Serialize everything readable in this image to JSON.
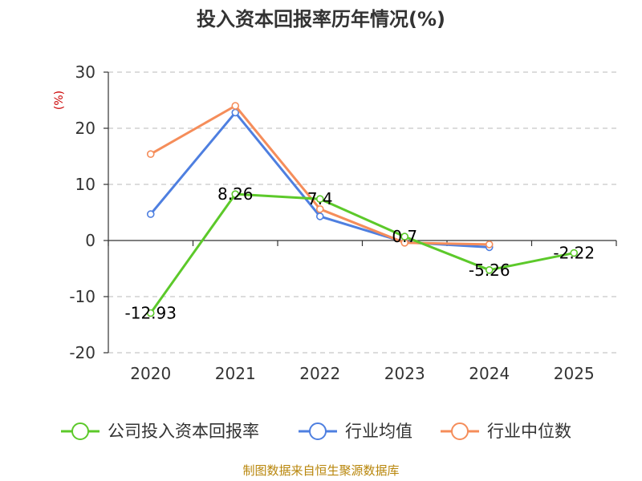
{
  "chart_data": {
    "type": "line",
    "title": "投入资本回报率历年情况(%)",
    "ylabel": "(%)",
    "xlabel": "",
    "categories": [
      "2020",
      "2021",
      "2022",
      "2023",
      "2024",
      "2025"
    ],
    "ylim": [
      -20,
      30
    ],
    "yticks": [
      -20,
      -10,
      0,
      10,
      20,
      30
    ],
    "grid": true,
    "legend_position": "bottom",
    "series": [
      {
        "name": "公司投入资本回报率",
        "color": "#5cc92a",
        "values": [
          -12.93,
          8.26,
          7.4,
          0.7,
          -5.26,
          -2.22
        ],
        "labels": [
          "-12.93",
          "8.26",
          "7.4",
          "0.7",
          "-5.26",
          "-2.22"
        ]
      },
      {
        "name": "行业均值",
        "color": "#4e7fe0",
        "values": [
          4.7,
          22.8,
          4.3,
          -0.3,
          -1.2,
          null
        ]
      },
      {
        "name": "行业中位数",
        "color": "#f58d5a",
        "values": [
          15.4,
          24.0,
          5.6,
          -0.4,
          -0.7,
          null
        ]
      }
    ]
  },
  "footer": {
    "source": "制图数据来自恒生聚源数据库"
  }
}
